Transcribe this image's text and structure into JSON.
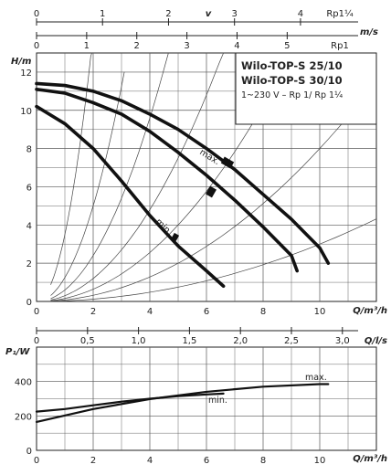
{
  "chart_data": [
    {
      "type": "line",
      "title_lines": [
        "Wilo-TOP-S 25/10",
        "Wilo-TOP-S 30/10",
        "1~230 V – Rp 1/ Rp 1¼"
      ],
      "ylabel": "H/m",
      "xlabel": "Q/m³/h",
      "xlim": [
        0,
        12
      ],
      "ylim": [
        0,
        13
      ],
      "x_ticks": [
        0,
        2,
        4,
        6,
        8,
        10
      ],
      "y_ticks": [
        0,
        2,
        4,
        6,
        8,
        10,
        12
      ],
      "grid": true,
      "top_axes": [
        {
          "label": "v",
          "unit_label": "m/s",
          "sublabel": "Rp1¼",
          "ticks": [
            {
              "label": "0",
              "q": 0
            },
            {
              "label": "1",
              "q": 2.33
            },
            {
              "label": "2",
              "q": 4.66
            },
            {
              "label": "3",
              "q": 6.99
            },
            {
              "label": "4",
              "q": 9.32
            }
          ]
        },
        {
          "label": "",
          "unit_label": "",
          "sublabel": "Rp1",
          "ticks": [
            {
              "label": "0",
              "q": 0
            },
            {
              "label": "1",
              "q": 1.77
            },
            {
              "label": "2",
              "q": 3.54
            },
            {
              "label": "3",
              "q": 5.31
            },
            {
              "label": "4",
              "q": 7.08
            },
            {
              "label": "5",
              "q": 8.85
            }
          ]
        }
      ],
      "secondary_axis": {
        "label": "Q/l/s",
        "ticks": [
          {
            "label": "0",
            "q": 0
          },
          {
            "label": "0,5",
            "q": 1.8
          },
          {
            "label": "1,0",
            "q": 3.6
          },
          {
            "label": "1,5",
            "q": 5.4
          },
          {
            "label": "2,0",
            "q": 7.2
          },
          {
            "label": "2,5",
            "q": 9.0
          },
          {
            "label": "3,0",
            "q": 10.8
          }
        ]
      },
      "series": [
        {
          "name": "max.",
          "points": [
            [
              0,
              11.4
            ],
            [
              1,
              11.3
            ],
            [
              2,
              11.0
            ],
            [
              3,
              10.5
            ],
            [
              4,
              9.8
            ],
            [
              5,
              9.0
            ],
            [
              6,
              8.0
            ],
            [
              7,
              6.9
            ],
            [
              8,
              5.6
            ],
            [
              9,
              4.3
            ],
            [
              10,
              2.8
            ],
            [
              10.3,
              2.0
            ]
          ]
        },
        {
          "name": "",
          "points": [
            [
              0,
              11.1
            ],
            [
              1,
              10.9
            ],
            [
              2,
              10.4
            ],
            [
              3,
              9.8
            ],
            [
              4,
              8.9
            ],
            [
              5,
              7.8
            ],
            [
              6,
              6.6
            ],
            [
              7,
              5.3
            ],
            [
              8,
              3.9
            ],
            [
              9,
              2.4
            ],
            [
              9.2,
              1.6
            ]
          ]
        },
        {
          "name": "min.",
          "points": [
            [
              0,
              10.2
            ],
            [
              1,
              9.3
            ],
            [
              2,
              8.0
            ],
            [
              3,
              6.3
            ],
            [
              4,
              4.5
            ],
            [
              5,
              2.9
            ],
            [
              6,
              1.6
            ],
            [
              6.6,
              0.8
            ]
          ]
        }
      ],
      "curve_labels": [
        {
          "text": "max.",
          "series": "max."
        },
        {
          "text": "min.",
          "series": "min."
        }
      ],
      "system_curves": [
        {
          "k": 3.5,
          "q_end": 1.95
        },
        {
          "k": 1.25,
          "q_end": 3.1
        },
        {
          "k": 0.6,
          "q_end": 4.65
        },
        {
          "k": 0.3,
          "q_end": 6.6
        },
        {
          "k": 0.16,
          "q_end": 9.2
        },
        {
          "k": 0.08,
          "q_end": 12
        },
        {
          "k": 0.03,
          "q_end": 12
        }
      ]
    },
    {
      "type": "line",
      "ylabel": "P₁/W",
      "xlabel": "Q/m³/h",
      "xlim": [
        0,
        12
      ],
      "ylim": [
        0,
        600
      ],
      "x_ticks": [
        0,
        2,
        4,
        6,
        8,
        10
      ],
      "y_ticks": [
        0,
        200,
        400
      ],
      "grid": true,
      "series": [
        {
          "name": "max.",
          "points": [
            [
              0,
              165
            ],
            [
              2,
              240
            ],
            [
              4,
              298
            ],
            [
              6,
              340
            ],
            [
              8,
              370
            ],
            [
              10,
              385
            ],
            [
              10.3,
              385
            ]
          ]
        },
        {
          "name": "min.",
          "points": [
            [
              0,
              225
            ],
            [
              1,
              240
            ],
            [
              2,
              262
            ],
            [
              3,
              283
            ],
            [
              4,
              300
            ],
            [
              5,
              315
            ],
            [
              6,
              325
            ],
            [
              6.6,
              330
            ]
          ]
        }
      ]
    }
  ]
}
